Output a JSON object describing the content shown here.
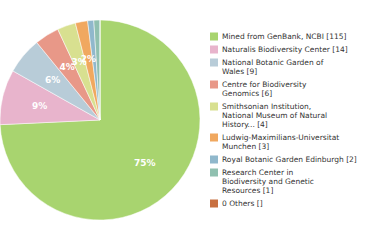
{
  "chart_data": {
    "type": "pie",
    "categories": [
      "Mined from GenBank, NCBI [115]",
      "Naturalis Biodiversity Center [14]",
      "National Botanic Garden of\nWales [9]",
      "Centre for Biodiversity\nGenomics [6]",
      "Smithsonian Institution,\nNational Museum of Natural\nHistory... [4]",
      "Ludwig-Maximilians-Universitat\nMunchen [3]",
      "Royal Botanic Garden Edinburgh [2]",
      "Research Center in\nBiodiversity and Genetic\nResources [1]",
      "0 Others []"
    ],
    "values": [
      75,
      9,
      6,
      4,
      3,
      2,
      1,
      1,
      0
    ],
    "value_labels": [
      "75%",
      "9%",
      "6%",
      "4%",
      "3%",
      "2%",
      null,
      null,
      null
    ],
    "colors": [
      "#a8d46f",
      "#e8b4cc",
      "#b8ccd8",
      "#e89888",
      "#d8e090",
      "#f0a860",
      "#90b8cc",
      "#90c0b0",
      "#c87040"
    ],
    "data_labels": true,
    "legend": "right"
  }
}
